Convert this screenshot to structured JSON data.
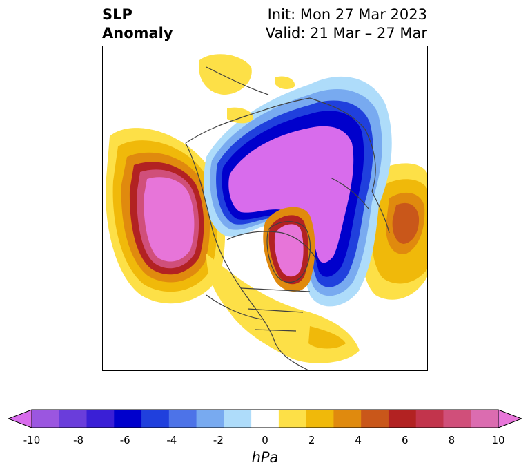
{
  "header": {
    "title_line1": "SLP",
    "title_line2": "Anomaly",
    "init_label": "Init: Mon 27 Mar 2023",
    "valid_label": "Valid: 21 Mar – 27 Mar"
  },
  "colorbar": {
    "colors": [
      "#d86cec",
      "#9b56e0",
      "#6a3ddb",
      "#3a1fd6",
      "#0000cc",
      "#2040dd",
      "#4d73e8",
      "#78aaf0",
      "#aedcfa",
      "#ffffff",
      "#fde047",
      "#f0b90a",
      "#e08a0e",
      "#c9571a",
      "#b22222",
      "#c2344c",
      "#d04f7a",
      "#db6cb0",
      "#e775d9"
    ],
    "tick_labels": [
      "-10",
      "-8",
      "-6",
      "-4",
      "-2",
      "0",
      "2",
      "4",
      "6",
      "8",
      "10"
    ],
    "label": "hPa"
  }
}
